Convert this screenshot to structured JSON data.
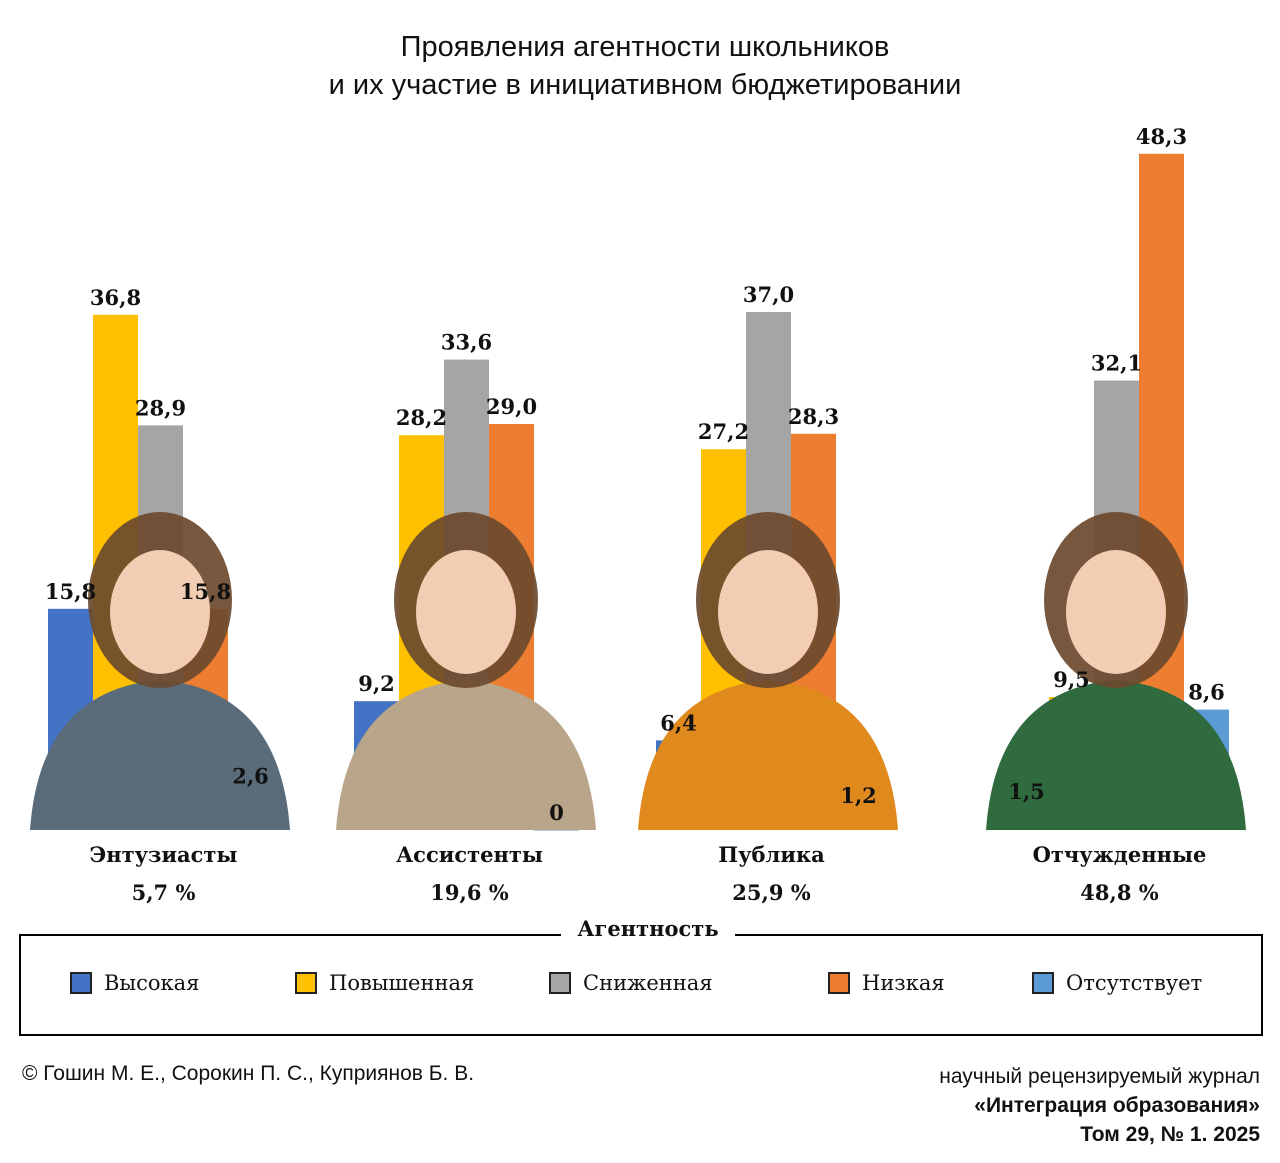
{
  "title_line1": "Проявления агентности школьников",
  "title_line2": "и их участие в инициативном бюджетировании",
  "chart_data": {
    "type": "bar",
    "categories": [
      "Энтузиасты",
      "Ассистенты",
      "Публика",
      "Отчужденные"
    ],
    "category_shares": [
      "5,7 %",
      "19,6 %",
      "25,9 %",
      "48,8 %"
    ],
    "legend_title": "Агентность",
    "series": [
      {
        "name": "Высокая",
        "color": "#4472c4",
        "values": [
          15.8,
          9.2,
          6.4,
          1.5
        ],
        "labels": [
          "15,8",
          "9,2",
          "6,4",
          "1,5"
        ]
      },
      {
        "name": "Повышенная",
        "color": "#ffc000",
        "values": [
          36.8,
          28.2,
          27.2,
          9.5
        ],
        "labels": [
          "36,8",
          "28,2",
          "27,2",
          "9,5"
        ]
      },
      {
        "name": "Сниженная",
        "color": "#a5a5a5",
        "values": [
          28.9,
          33.6,
          37.0,
          32.1
        ],
        "labels": [
          "28,9",
          "33,6",
          "37,0",
          "32,1"
        ]
      },
      {
        "name": "Низкая",
        "color": "#ed7d31",
        "values": [
          15.8,
          29.0,
          28.3,
          48.3
        ],
        "labels": [
          "15,8",
          "29,0",
          "28,3",
          "48,3"
        ]
      },
      {
        "name": "Отсутствует",
        "color": "#5b9bd5",
        "values": [
          2.6,
          0,
          1.2,
          8.6
        ],
        "labels": [
          "2,6",
          "0",
          "1,2",
          "8,6"
        ]
      }
    ],
    "illustration_icons": [
      "girl-with-book-icon",
      "boy-reading-paper-icon",
      "girl-waving-icon",
      "girl-with-braid-icon"
    ]
  },
  "footer": {
    "authors": "© Гошин М. Е., Сорокин  П. С., Куприянов Б. В.",
    "journal_line1": "научный рецензируемый журнал",
    "journal_line2": "«Интеграция образования»",
    "journal_line3": "Том 29, № 1. 2025"
  }
}
